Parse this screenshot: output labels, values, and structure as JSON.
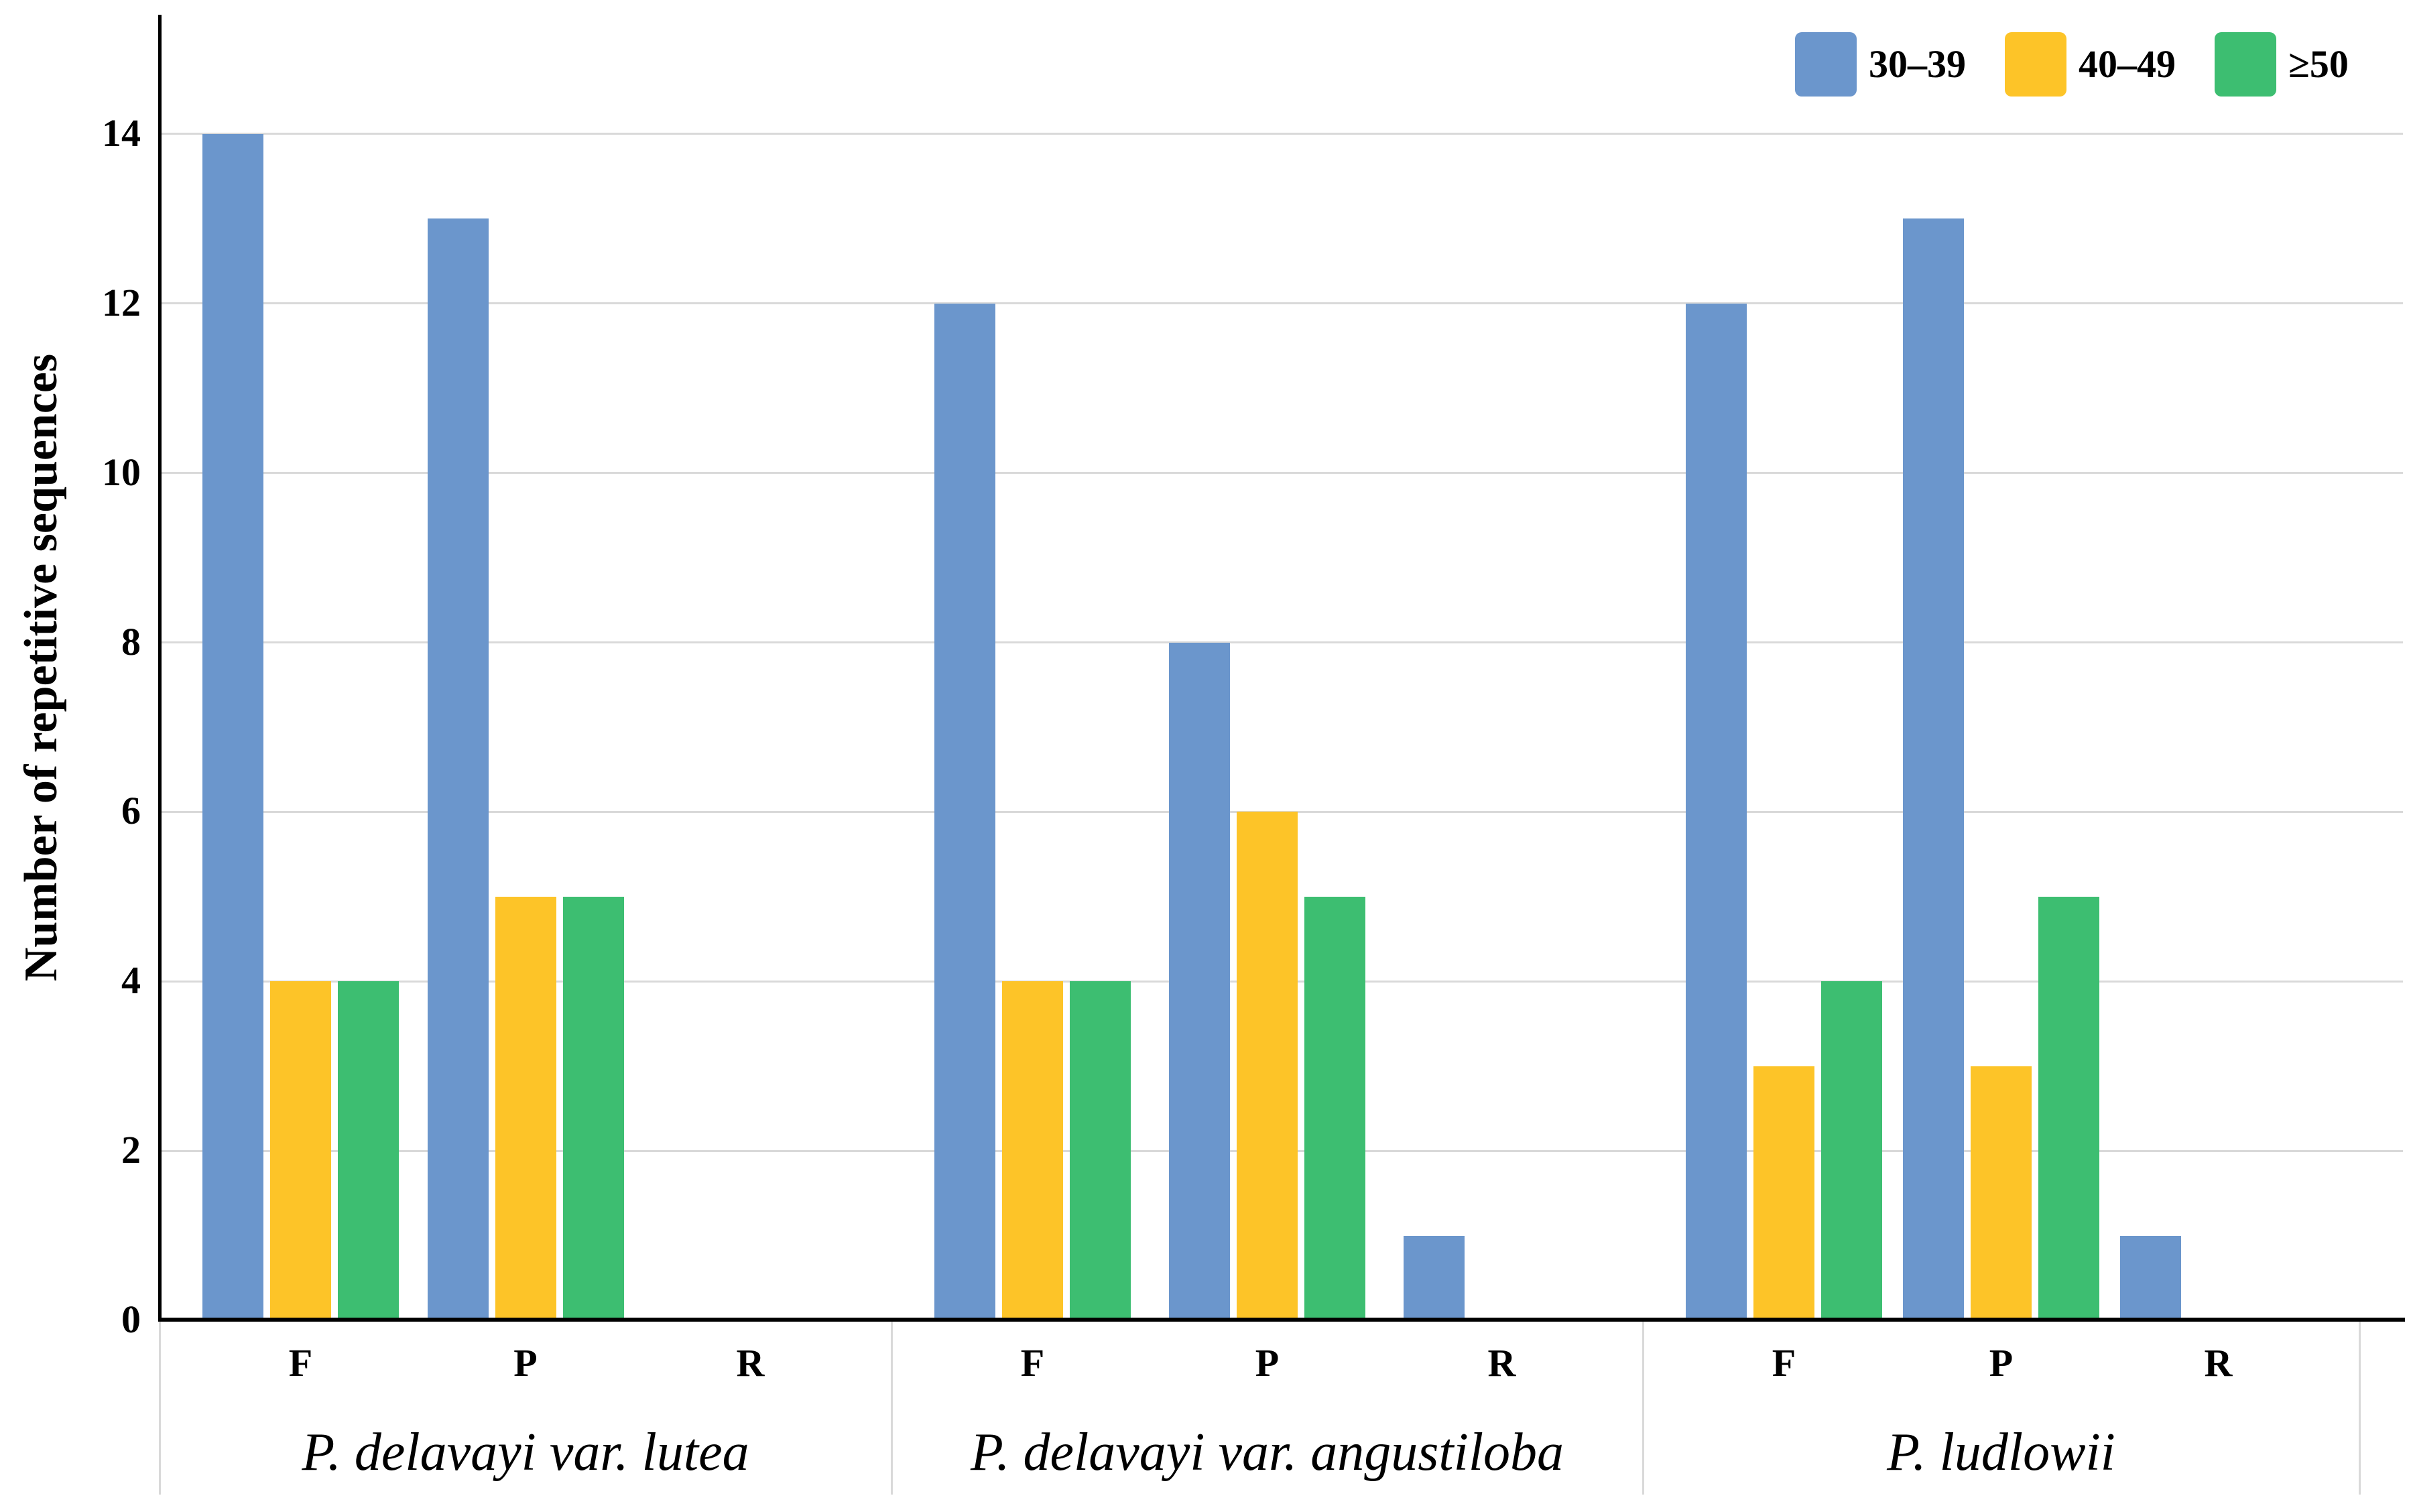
{
  "chart_data": {
    "type": "bar",
    "title": "",
    "ylabel": "Number of repetitive sequences",
    "xlabel": "",
    "ylim": [
      0,
      15.4
    ],
    "yticks": [
      0,
      2,
      4,
      6,
      8,
      10,
      12,
      14
    ],
    "grid": "horizontal",
    "legend_position": "top-right",
    "groups": [
      "P. delavayi var. lutea",
      "P. delavayi var. angustiloba",
      "P. ludlowii"
    ],
    "categories": [
      "F",
      "P",
      "R"
    ],
    "series": [
      {
        "name": "30–39",
        "color": "#6B96CC",
        "values": [
          [
            14,
            13,
            0
          ],
          [
            12,
            8,
            1
          ],
          [
            12,
            13,
            1
          ]
        ]
      },
      {
        "name": "40–49",
        "color": "#FDC428",
        "values": [
          [
            4,
            5,
            0
          ],
          [
            4,
            6,
            0
          ],
          [
            3,
            3,
            0
          ]
        ]
      },
      {
        "name": "≥50",
        "color": "#3DBE71",
        "values": [
          [
            4,
            5,
            0
          ],
          [
            4,
            5,
            0
          ],
          [
            4,
            5,
            0
          ]
        ]
      }
    ],
    "colors": {
      "gridline": "#D9D9D9",
      "separator": "#D9D9D9",
      "axis": "#000000",
      "background": "#FFFFFF"
    }
  }
}
